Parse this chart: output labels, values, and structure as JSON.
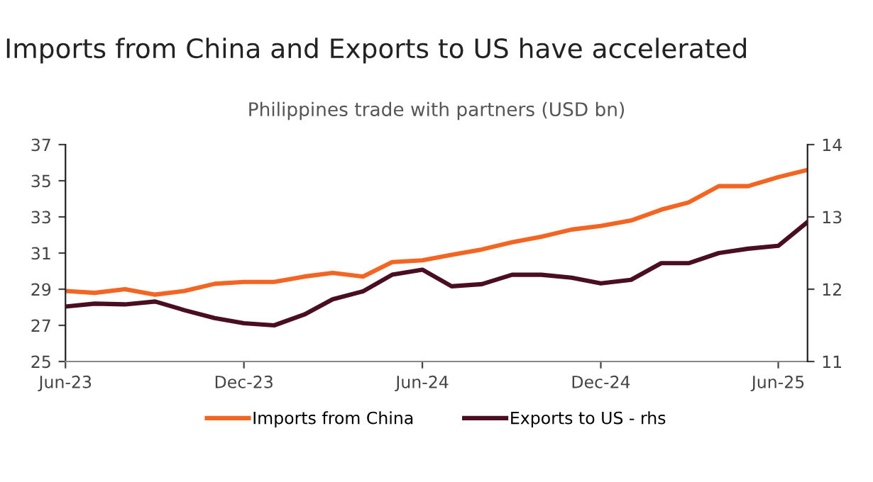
{
  "chart_data": {
    "type": "line",
    "title": "Imports from China and Exports to US have accelerated",
    "subtitle": "Philippines trade with partners (USD bn)",
    "x": [
      "2023-06",
      "2023-07",
      "2023-08",
      "2023-09",
      "2023-10",
      "2023-11",
      "2023-12",
      "2024-01",
      "2024-02",
      "2024-03",
      "2024-04",
      "2024-05",
      "2024-06",
      "2024-07",
      "2024-08",
      "2024-09",
      "2024-10",
      "2024-11",
      "2024-12",
      "2025-01",
      "2025-02",
      "2025-03",
      "2025-04",
      "2025-05",
      "2025-06",
      "2025-07"
    ],
    "series": [
      {
        "name": "Imports from China",
        "color": "#f26522",
        "values": [
          28.9,
          28.8,
          29.0,
          28.7,
          28.9,
          29.3,
          29.4,
          29.4,
          29.7,
          29.9,
          29.7,
          30.5,
          30.6,
          30.9,
          31.2,
          31.6,
          31.9,
          32.3,
          32.5,
          32.8,
          33.4,
          33.8,
          34.7,
          34.7,
          35.2,
          35.6
        ]
      },
      {
        "name": "Exports to US - rhs",
        "color": "#4a0e22",
        "axis": "y2",
        "values": [
          11.76,
          11.8,
          11.79,
          11.83,
          11.71,
          11.6,
          11.53,
          11.5,
          11.65,
          11.86,
          11.97,
          12.2,
          12.27,
          12.04,
          12.07,
          12.2,
          12.2,
          12.16,
          12.08,
          12.13,
          12.36,
          12.36,
          12.5,
          12.56,
          12.6,
          12.93
        ]
      }
    ],
    "xlim": [
      "2023-06",
      "2025-07"
    ],
    "xticks": [
      {
        "value": "2023-06",
        "label": "Jun-23"
      },
      {
        "value": "2023-12",
        "label": "Dec-23"
      },
      {
        "value": "2024-06",
        "label": "Jun-24"
      },
      {
        "value": "2024-12",
        "label": "Dec-24"
      },
      {
        "value": "2025-06",
        "label": "Jun-25"
      }
    ],
    "ylim": [
      25,
      37
    ],
    "yticks": [
      25,
      27,
      29,
      31,
      33,
      35,
      37
    ],
    "y2lim": [
      11,
      14
    ],
    "y2ticks": [
      11,
      12,
      13,
      14
    ],
    "grid": false,
    "legend": "bottom",
    "marker": "none",
    "line_style": "solid"
  }
}
